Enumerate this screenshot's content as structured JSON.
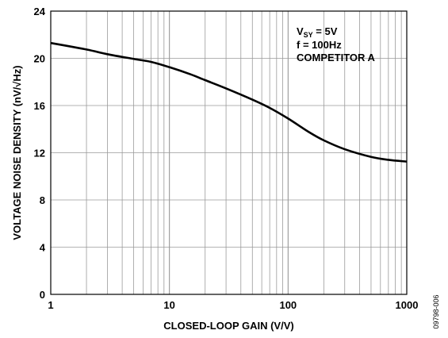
{
  "chart_data": {
    "type": "line",
    "xscale": "log",
    "xlim": [
      1,
      1000
    ],
    "ylim": [
      0,
      24
    ],
    "xticks": [
      1,
      10,
      100,
      1000
    ],
    "xtick_labels": [
      "1",
      "10",
      "100",
      "1000"
    ],
    "yticks": [
      0,
      4,
      8,
      12,
      16,
      20,
      24
    ],
    "ytick_labels": [
      "0",
      "4",
      "8",
      "12",
      "16",
      "20",
      "24"
    ],
    "xlabel": "CLOSED-LOOP GAIN (V/V)",
    "ylabel": "VOLTAGE NOISE DENSITY (nV/√Hz)",
    "grid": true,
    "series": [
      {
        "x": [
          1,
          2,
          3,
          5,
          7,
          10,
          15,
          20,
          30,
          50,
          70,
          100,
          150,
          200,
          300,
          500,
          700,
          1000
        ],
        "y": [
          21.3,
          20.75,
          20.35,
          19.95,
          19.7,
          19.25,
          18.65,
          18.15,
          17.45,
          16.5,
          15.8,
          14.9,
          13.75,
          13.05,
          12.3,
          11.65,
          11.4,
          11.25
        ]
      }
    ],
    "annotation": {
      "line1_main": "V",
      "line1_sub": "SY",
      "line1_rest": " = 5V",
      "line2": "f = 100Hz",
      "line3": "COMPETITOR A"
    },
    "figure_id": "09798-006"
  }
}
